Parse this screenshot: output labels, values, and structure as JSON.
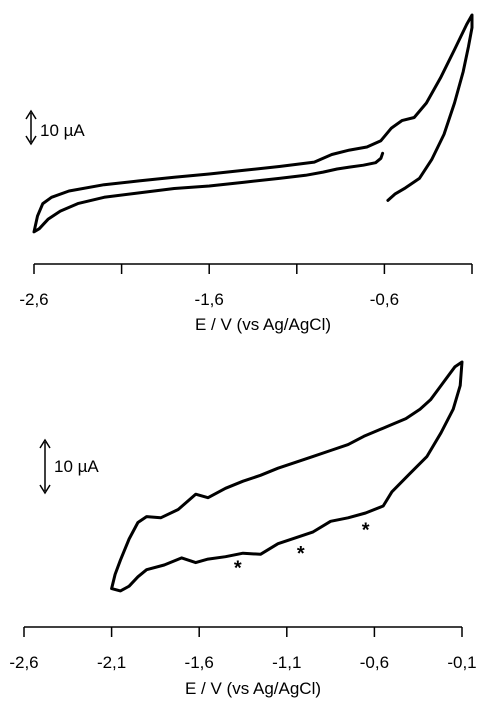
{
  "chart_data": [
    {
      "type": "line",
      "panel": "top",
      "xlabel": "E / V (vs Ag/AgCl)",
      "ylabel": "",
      "xlim": [
        -2.6,
        -0.1
      ],
      "x_ticks": [
        -2.6,
        -2.1,
        -1.6,
        -1.1,
        -0.6,
        -0.1
      ],
      "x_tick_labels": [
        "-2,6",
        "",
        "-1,6",
        "",
        "-0,6",
        ""
      ],
      "scale_bar": {
        "label": "10 µA",
        "value_uA": 10
      },
      "grid": false,
      "legend": "none",
      "series": [
        {
          "points": [
            [
              -0.58,
              -4.5
            ],
            [
              -0.54,
              -3.5
            ],
            [
              -0.48,
              -2.5
            ],
            [
              -0.4,
              -1.0
            ],
            [
              -0.33,
              2.0
            ],
            [
              -0.26,
              6.0
            ],
            [
              -0.2,
              11.0
            ],
            [
              -0.15,
              16.0
            ],
            [
              -0.12,
              20.0
            ],
            [
              -0.1,
              23.0
            ],
            [
              -0.1,
              25.0
            ],
            [
              -0.13,
              23.5
            ],
            [
              -0.2,
              19.5
            ],
            [
              -0.28,
              15.0
            ],
            [
              -0.36,
              11.0
            ],
            [
              -0.43,
              8.7
            ],
            [
              -0.5,
              8.2
            ],
            [
              -0.56,
              7.0
            ],
            [
              -0.62,
              5.0
            ],
            [
              -0.7,
              4.0
            ],
            [
              -0.8,
              3.5
            ],
            [
              -0.9,
              2.8
            ],
            [
              -1.0,
              1.6
            ],
            [
              -1.2,
              0.9
            ],
            [
              -1.4,
              0.3
            ],
            [
              -1.6,
              -0.3
            ],
            [
              -1.8,
              -0.8
            ],
            [
              -2.0,
              -1.4
            ],
            [
              -2.2,
              -2.0
            ],
            [
              -2.4,
              -3.0
            ],
            [
              -2.5,
              -4.0
            ],
            [
              -2.55,
              -5.0
            ],
            [
              -2.58,
              -7.0
            ],
            [
              -2.6,
              -9.5
            ],
            [
              -2.57,
              -9.0
            ],
            [
              -2.52,
              -7.5
            ],
            [
              -2.45,
              -6.2
            ],
            [
              -2.35,
              -5.0
            ],
            [
              -2.2,
              -4.0
            ],
            [
              -2.0,
              -3.3
            ],
            [
              -1.8,
              -2.6
            ],
            [
              -1.6,
              -2.2
            ],
            [
              -1.4,
              -1.6
            ],
            [
              -1.2,
              -1.0
            ],
            [
              -1.05,
              -0.5
            ],
            [
              -0.95,
              0.0
            ],
            [
              -0.87,
              0.5
            ],
            [
              -0.8,
              0.8
            ],
            [
              -0.72,
              1.1
            ],
            [
              -0.65,
              1.5
            ],
            [
              -0.62,
              2.2
            ],
            [
              -0.61,
              3.0
            ]
          ]
        }
      ]
    },
    {
      "type": "line",
      "panel": "bottom",
      "xlabel": "E / V (vs Ag/AgCl)",
      "ylabel": "",
      "xlim": [
        -2.6,
        -0.1
      ],
      "x_ticks": [
        -2.6,
        -2.1,
        -1.6,
        -1.1,
        -0.6,
        -0.1
      ],
      "x_tick_labels": [
        "-2,6",
        "-2,1",
        "-1,6",
        "-1,1",
        "-0,6",
        "-0,1"
      ],
      "scale_bar": {
        "label": "10 µA",
        "value_uA": 10
      },
      "grid": false,
      "legend": "none",
      "annotations": [
        {
          "text": "*",
          "x": -1.38,
          "y": -5.0
        },
        {
          "text": "*",
          "x": -1.02,
          "y": -3.8
        },
        {
          "text": "*",
          "x": -0.65,
          "y": -1.8
        }
      ],
      "series": [
        {
          "points": [
            [
              -2.1,
              -6.2
            ],
            [
              -2.05,
              -6.4
            ],
            [
              -2.0,
              -6.0
            ],
            [
              -1.95,
              -5.2
            ],
            [
              -1.9,
              -4.6
            ],
            [
              -1.8,
              -4.2
            ],
            [
              -1.7,
              -3.6
            ],
            [
              -1.62,
              -4.0
            ],
            [
              -1.55,
              -3.7
            ],
            [
              -1.45,
              -3.5
            ],
            [
              -1.35,
              -3.2
            ],
            [
              -1.25,
              -3.3
            ],
            [
              -1.15,
              -2.4
            ],
            [
              -1.05,
              -1.9
            ],
            [
              -0.95,
              -1.4
            ],
            [
              -0.85,
              -0.5
            ],
            [
              -0.75,
              -0.2
            ],
            [
              -0.65,
              0.2
            ],
            [
              -0.55,
              0.8
            ],
            [
              -0.5,
              2.0
            ],
            [
              -0.4,
              3.5
            ],
            [
              -0.3,
              5.0
            ],
            [
              -0.22,
              7.0
            ],
            [
              -0.15,
              9.0
            ],
            [
              -0.11,
              11.0
            ],
            [
              -0.1,
              13.0
            ],
            [
              -0.14,
              12.6
            ],
            [
              -0.22,
              11.0
            ],
            [
              -0.28,
              9.8
            ],
            [
              -0.34,
              9.0
            ],
            [
              -0.42,
              8.2
            ],
            [
              -0.5,
              7.7
            ],
            [
              -0.58,
              7.2
            ],
            [
              -0.66,
              6.7
            ],
            [
              -0.75,
              6.0
            ],
            [
              -0.85,
              5.5
            ],
            [
              -0.95,
              5.0
            ],
            [
              -1.05,
              4.5
            ],
            [
              -1.15,
              4.0
            ],
            [
              -1.25,
              3.4
            ],
            [
              -1.35,
              2.9
            ],
            [
              -1.45,
              2.3
            ],
            [
              -1.55,
              1.5
            ],
            [
              -1.62,
              1.8
            ],
            [
              -1.72,
              0.5
            ],
            [
              -1.82,
              -0.2
            ],
            [
              -1.9,
              -0.1
            ],
            [
              -1.95,
              -0.6
            ],
            [
              -2.0,
              -2.0
            ],
            [
              -2.05,
              -3.8
            ],
            [
              -2.08,
              -5.0
            ],
            [
              -2.1,
              -6.2
            ]
          ]
        }
      ]
    }
  ]
}
